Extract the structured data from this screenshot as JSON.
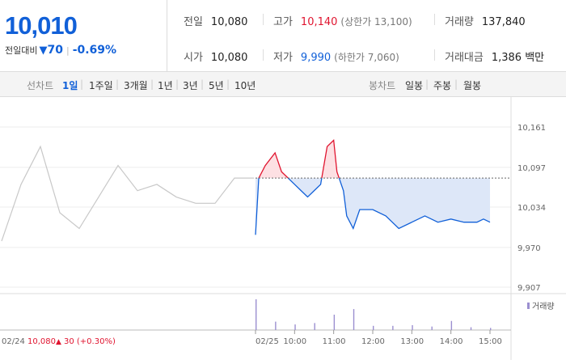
{
  "summary": {
    "price": "10,010",
    "change_label": "전일대비",
    "change_icon": "down-triangle-icon",
    "change_amount": "70",
    "change_pct": "-0.69%"
  },
  "stats": {
    "prev_close": {
      "label": "전일",
      "value": "10,080"
    },
    "open": {
      "label": "시가",
      "value": "10,080"
    },
    "high": {
      "label": "고가",
      "value": "10,140",
      "sub": "(상한가 13,100)"
    },
    "low": {
      "label": "저가",
      "value": "9,990",
      "sub": "(하한가 7,060)"
    },
    "volume": {
      "label": "거래량",
      "value": "137,840"
    },
    "amount": {
      "label": "거래대금",
      "value": "1,386 백만"
    }
  },
  "tabs": {
    "line_label": "선차트",
    "line_items": [
      "1일",
      "1주일",
      "3개월",
      "1년",
      "3년",
      "5년",
      "10년"
    ],
    "line_active": "1일",
    "candle_label": "봉차트",
    "candle_items": [
      "일봉",
      "주봉",
      "월봉"
    ]
  },
  "colors": {
    "up": "#e0142f",
    "down": "#1160d8",
    "prev_day": "#c8c8c8",
    "volume": "#9b8fd0",
    "fill": "#dde7f8"
  },
  "chart_data": [
    {
      "type": "line",
      "title": "",
      "ylabel": "",
      "y_ticks": [
        "10,161",
        "10,097",
        "10,034",
        "9,970",
        "9,907"
      ],
      "ylim": [
        9907,
        10161
      ],
      "x_ticks": [
        "02/25",
        "10:00",
        "11:00",
        "12:00",
        "13:00",
        "14:00",
        "15:00"
      ],
      "reference_price": 10080,
      "prev_day_label": "02/24",
      "prev_day_close": "10,080",
      "prev_day_change_icon": "up-triangle-icon",
      "prev_day_change": "30 (+0.30%)",
      "series": [
        {
          "type": "line",
          "x": [
            "02/24 09:00",
            "02/24 09:30",
            "02/24 10:00",
            "02/24 10:30",
            "02/24 11:00",
            "02/24 11:30",
            "02/24 12:00",
            "02/24 12:30",
            "02/24 13:00",
            "02/24 13:30",
            "02/24 14:00",
            "02/24 14:30",
            "02/24 15:00",
            "02/24 15:30"
          ],
          "y": [
            9980,
            10070,
            10130,
            10025,
            10000,
            10050,
            10100,
            10060,
            10070,
            10050,
            10040,
            10040,
            10080,
            10080
          ]
        },
        {
          "type": "line",
          "x": [
            "09:00",
            "09:05",
            "09:15",
            "09:30",
            "09:40",
            "09:50",
            "10:00",
            "10:10",
            "10:20",
            "10:30",
            "10:40",
            "10:50",
            "11:00",
            "11:05",
            "11:15",
            "11:20",
            "11:30",
            "11:40",
            "12:00",
            "12:20",
            "12:40",
            "13:00",
            "13:20",
            "13:40",
            "14:00",
            "14:20",
            "14:40",
            "14:50",
            "15:00"
          ],
          "y": [
            9990,
            10080,
            10100,
            10120,
            10090,
            10080,
            10070,
            10060,
            10050,
            10060,
            10070,
            10130,
            10140,
            10090,
            10060,
            10020,
            10000,
            10030,
            10030,
            10020,
            10000,
            10010,
            10020,
            10010,
            10015,
            10010,
            10010,
            10015,
            10010
          ]
        }
      ]
    },
    {
      "type": "bar",
      "title": "",
      "legend": "거래량",
      "x": [
        "09:00",
        "09:30",
        "10:00",
        "10:30",
        "11:00",
        "11:30",
        "12:00",
        "12:30",
        "13:00",
        "13:30",
        "14:00",
        "14:30",
        "15:00"
      ],
      "values": [
        22000,
        6000,
        4000,
        5000,
        11000,
        15000,
        3000,
        3000,
        3500,
        2500,
        6500,
        2000,
        1500
      ]
    }
  ]
}
